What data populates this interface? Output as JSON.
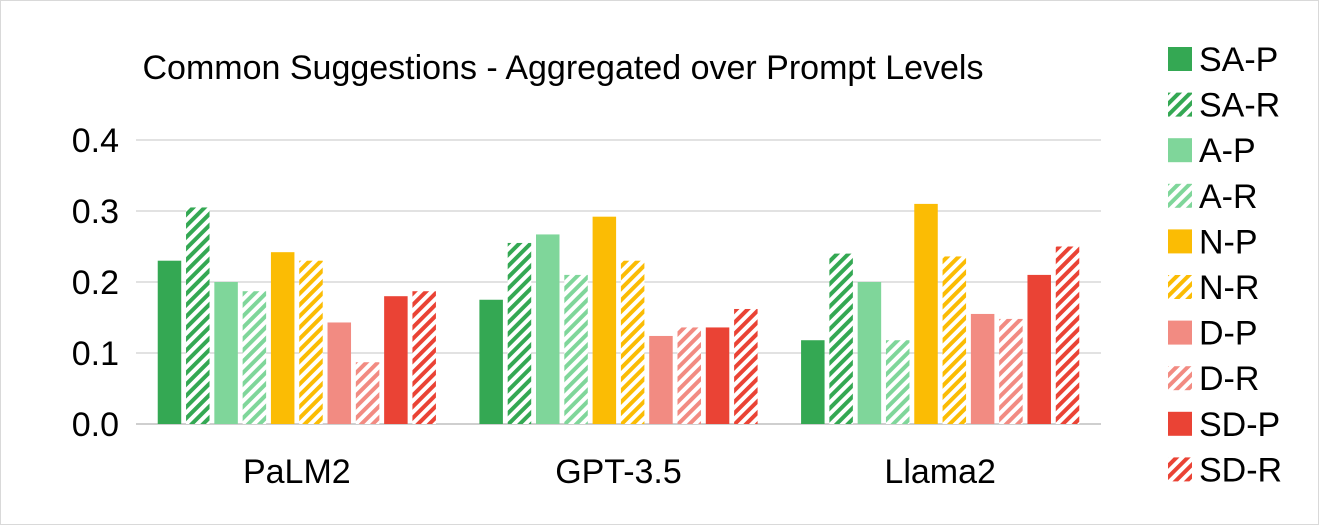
{
  "chart_data": {
    "type": "bar",
    "title": "Common Suggestions - Aggregated over Prompt Levels",
    "xlabel": "",
    "ylabel": "",
    "categories": [
      "PaLM2",
      "GPT-3.5",
      "Llama2"
    ],
    "ylim": [
      0,
      0.4
    ],
    "yticks": [
      "0.0",
      "0.1",
      "0.2",
      "0.3",
      "0.4"
    ],
    "grid": true,
    "legend_position": "right",
    "series": [
      {
        "name": "SA-P",
        "color": "#34a853",
        "pattern": "solid",
        "values": [
          0.23,
          0.175,
          0.118
        ]
      },
      {
        "name": "SA-R",
        "color": "#34a853",
        "pattern": "striped",
        "values": [
          0.305,
          0.255,
          0.24
        ]
      },
      {
        "name": "A-P",
        "color": "#7fd69a",
        "pattern": "solid",
        "values": [
          0.2,
          0.267,
          0.2
        ]
      },
      {
        "name": "A-R",
        "color": "#7fd69a",
        "pattern": "striped",
        "values": [
          0.187,
          0.21,
          0.118
        ]
      },
      {
        "name": "N-P",
        "color": "#fbbc04",
        "pattern": "solid",
        "values": [
          0.242,
          0.292,
          0.31
        ]
      },
      {
        "name": "N-R",
        "color": "#fbbc04",
        "pattern": "striped",
        "values": [
          0.23,
          0.23,
          0.236
        ]
      },
      {
        "name": "D-P",
        "color": "#f28b82",
        "pattern": "solid",
        "values": [
          0.143,
          0.124,
          0.155
        ]
      },
      {
        "name": "D-R",
        "color": "#f28b82",
        "pattern": "striped",
        "values": [
          0.087,
          0.136,
          0.148
        ]
      },
      {
        "name": "SD-P",
        "color": "#ea4335",
        "pattern": "solid",
        "values": [
          0.18,
          0.136,
          0.21
        ]
      },
      {
        "name": "SD-R",
        "color": "#ea4335",
        "pattern": "striped",
        "values": [
          0.187,
          0.162,
          0.25
        ]
      }
    ]
  }
}
